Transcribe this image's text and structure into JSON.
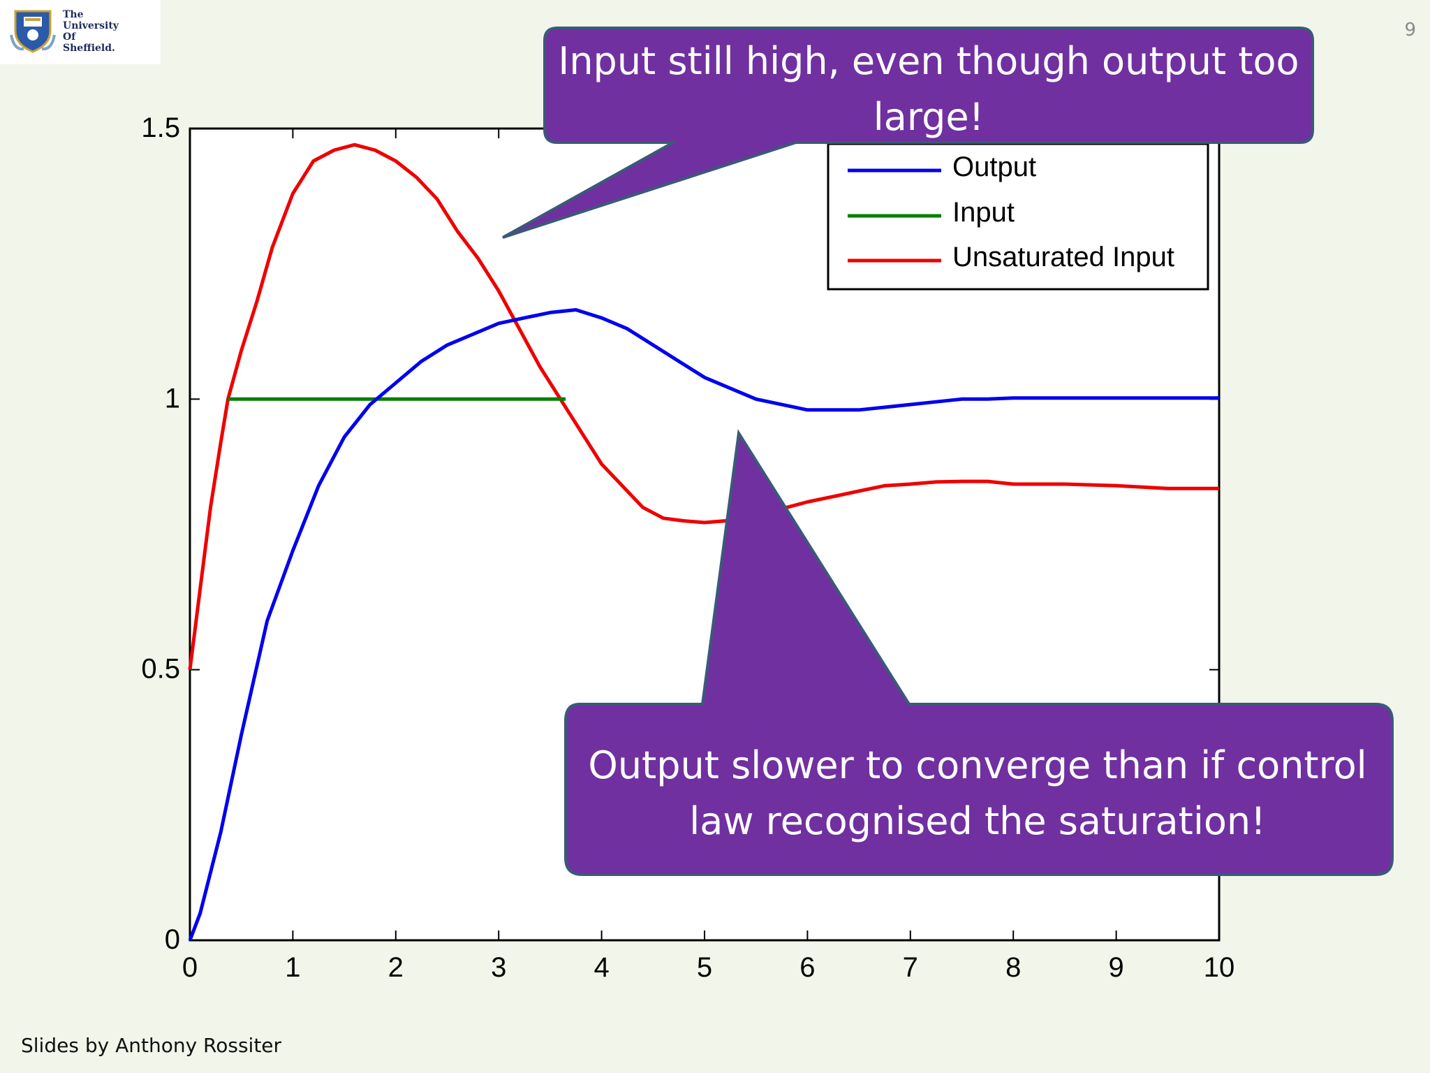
{
  "logo": {
    "lines": [
      "The",
      "University",
      "Of",
      "Sheffield."
    ]
  },
  "page_number": "9",
  "footer": "Slides by Anthony Rossiter",
  "callouts": [
    {
      "text": "Input still high, even though output too large!"
    },
    {
      "text": "Output slower to converge than if control law recognised the saturation!"
    }
  ],
  "colors": {
    "output": "#0000ee",
    "input": "#008000",
    "unsaturated": "#ee0000",
    "callout_fill": "#7030a0",
    "callout_border": "#3a5a78"
  },
  "chart_data": {
    "type": "line",
    "xlim": [
      0,
      10
    ],
    "ylim": [
      0,
      1.5
    ],
    "xticks": [
      0,
      1,
      2,
      3,
      4,
      5,
      6,
      7,
      8,
      9,
      10
    ],
    "yticks": [
      0,
      0.5,
      1,
      1.5
    ],
    "ytick_labels": [
      "0",
      "0.5",
      "1",
      "1.5"
    ],
    "grid": false,
    "legend_position": "top-right",
    "series": [
      {
        "name": "Output",
        "color": "#0000ee",
        "x": [
          0,
          0.1,
          0.3,
          0.5,
          0.75,
          1,
          1.25,
          1.5,
          1.75,
          2,
          2.25,
          2.5,
          2.75,
          3,
          3.25,
          3.5,
          3.75,
          4,
          4.25,
          4.5,
          4.75,
          5,
          5.25,
          5.5,
          5.75,
          6,
          6.25,
          6.5,
          6.75,
          7,
          7.25,
          7.5,
          7.75,
          8,
          8.5,
          9,
          9.5,
          10
        ],
        "y": [
          0,
          0.05,
          0.2,
          0.38,
          0.59,
          0.72,
          0.84,
          0.93,
          0.99,
          1.03,
          1.07,
          1.1,
          1.12,
          1.14,
          1.15,
          1.16,
          1.165,
          1.15,
          1.13,
          1.1,
          1.07,
          1.04,
          1.02,
          1.0,
          0.99,
          0.98,
          0.98,
          0.98,
          0.985,
          0.99,
          0.995,
          1.0,
          1.0,
          1.002,
          1.002,
          1.002,
          1.002,
          1.002
        ]
      },
      {
        "name": "Input",
        "color": "#008000",
        "x": [
          0.37,
          3.65
        ],
        "y": [
          1,
          1
        ]
      },
      {
        "name": "Unsaturated Input",
        "color": "#ee0000",
        "x": [
          0,
          0.1,
          0.2,
          0.3,
          0.37,
          0.5,
          0.65,
          0.8,
          1,
          1.2,
          1.4,
          1.6,
          1.8,
          2,
          2.2,
          2.4,
          2.6,
          2.8,
          3,
          3.2,
          3.4,
          3.6,
          3.8,
          4,
          4.2,
          4.4,
          4.6,
          4.8,
          5,
          5.2,
          5.4,
          5.6,
          5.8,
          6,
          6.25,
          6.5,
          6.75,
          7,
          7.25,
          7.5,
          7.75,
          8,
          8.5,
          9,
          9.5,
          10
        ],
        "y": [
          0.5,
          0.65,
          0.8,
          0.92,
          1.0,
          1.09,
          1.18,
          1.28,
          1.38,
          1.44,
          1.46,
          1.47,
          1.46,
          1.44,
          1.41,
          1.37,
          1.31,
          1.26,
          1.2,
          1.13,
          1.06,
          1.0,
          0.94,
          0.88,
          0.84,
          0.8,
          0.78,
          0.775,
          0.772,
          0.775,
          0.78,
          0.79,
          0.8,
          0.81,
          0.82,
          0.83,
          0.84,
          0.843,
          0.847,
          0.848,
          0.848,
          0.843,
          0.843,
          0.84,
          0.835,
          0.835
        ]
      }
    ]
  }
}
